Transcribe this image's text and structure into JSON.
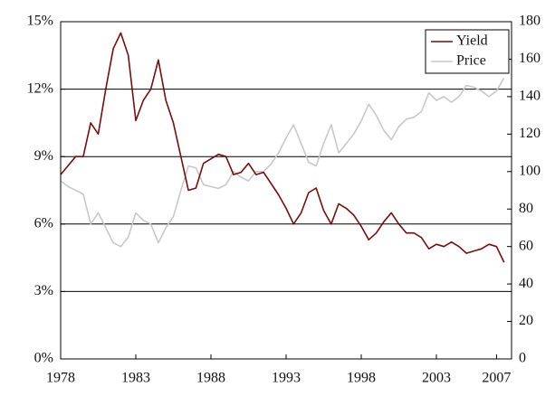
{
  "chart_data": {
    "type": "line",
    "x": [
      1978,
      1978.5,
      1979,
      1979.5,
      1980,
      1980.5,
      1981,
      1981.5,
      1982,
      1982.5,
      1983,
      1983.5,
      1984,
      1984.5,
      1985,
      1985.5,
      1986,
      1986.5,
      1987,
      1987.5,
      1988,
      1988.5,
      1989,
      1989.5,
      1990,
      1990.5,
      1991,
      1991.5,
      1992,
      1992.5,
      1993,
      1993.5,
      1994,
      1994.5,
      1995,
      1995.5,
      1996,
      1996.5,
      1997,
      1997.5,
      1998,
      1998.5,
      1999,
      1999.5,
      2000,
      2000.5,
      2001,
      2001.5,
      2002,
      2002.5,
      2003,
      2003.5,
      2004,
      2004.5,
      2005,
      2005.5,
      2006,
      2006.5,
      2007,
      2007.5
    ],
    "series": [
      {
        "name": "Yield",
        "color": "#7b0c0c",
        "axis": "y",
        "values": [
          8.2,
          8.6,
          9.0,
          9.0,
          10.5,
          10.0,
          12.0,
          13.8,
          14.5,
          13.5,
          10.6,
          11.5,
          12.0,
          13.3,
          11.5,
          10.5,
          9.0,
          7.5,
          7.6,
          8.7,
          8.9,
          9.1,
          9.0,
          8.2,
          8.3,
          8.7,
          8.2,
          8.3,
          7.8,
          7.3,
          6.7,
          6.0,
          6.5,
          7.4,
          7.6,
          6.6,
          6.0,
          6.9,
          6.7,
          6.4,
          5.9,
          5.3,
          5.6,
          6.1,
          6.5,
          6.0,
          5.6,
          5.6,
          5.4,
          4.9,
          5.1,
          5.0,
          5.2,
          5.0,
          4.7,
          4.8,
          4.9,
          5.1,
          5.0,
          4.3
        ]
      },
      {
        "name": "Price",
        "color": "#c8c8c8",
        "axis": "y2",
        "values": [
          95,
          92,
          90,
          88,
          72,
          78,
          70,
          62,
          60,
          65,
          78,
          74,
          72,
          62,
          70,
          76,
          90,
          103,
          102,
          93,
          92,
          91,
          93,
          100,
          97,
          95,
          100,
          100,
          104,
          110,
          118,
          125,
          115,
          105,
          103,
          115,
          125,
          110,
          115,
          120,
          127,
          136,
          130,
          122,
          117,
          124,
          128,
          129,
          132,
          142,
          138,
          140,
          137,
          140,
          146,
          145,
          143,
          140,
          143,
          150
        ]
      }
    ],
    "xlim": [
      1978,
      2008
    ],
    "xticks": [
      1978,
      1983,
      1988,
      1993,
      1998,
      2003,
      2007
    ],
    "ylim": [
      0,
      15
    ],
    "yticks": [
      {
        "value": 0,
        "label": "0%"
      },
      {
        "value": 3,
        "label": "3%"
      },
      {
        "value": 6,
        "label": "6%"
      },
      {
        "value": 9,
        "label": "9%"
      },
      {
        "value": 12,
        "label": "12%"
      },
      {
        "value": 15,
        "label": "15%"
      }
    ],
    "y2lim": [
      0,
      180
    ],
    "y2ticks": [
      0,
      20,
      40,
      60,
      80,
      100,
      120,
      140,
      160,
      180
    ],
    "grid": true,
    "legend": "upper right"
  }
}
